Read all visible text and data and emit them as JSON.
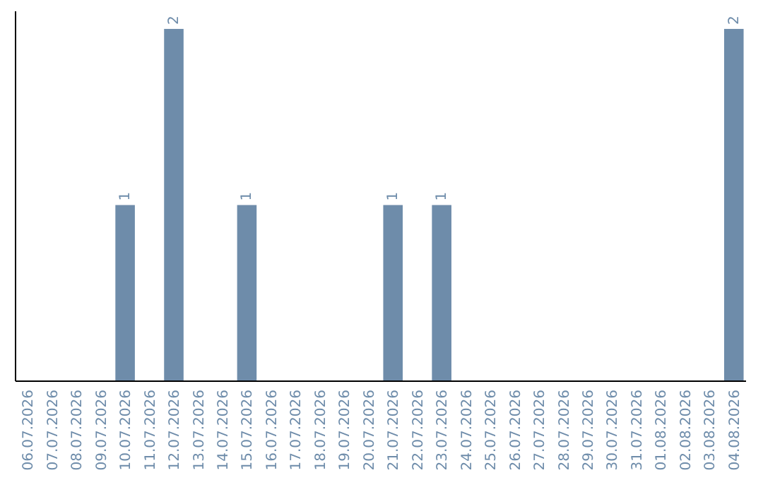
{
  "chart_data": {
    "type": "bar",
    "categories": [
      "06.07.2026",
      "07.07.2026",
      "08.07.2026",
      "09.07.2026",
      "10.07.2026",
      "11.07.2026",
      "12.07.2026",
      "13.07.2026",
      "14.07.2026",
      "15.07.2026",
      "16.07.2026",
      "17.07.2026",
      "18.07.2026",
      "19.07.2026",
      "20.07.2026",
      "21.07.2026",
      "22.07.2026",
      "23.07.2026",
      "24.07.2026",
      "25.07.2026",
      "26.07.2026",
      "27.07.2026",
      "28.07.2026",
      "29.07.2026",
      "30.07.2026",
      "31.07.2026",
      "01.08.2026",
      "02.08.2026",
      "03.08.2026",
      "04.08.2026"
    ],
    "values": [
      0,
      0,
      0,
      0,
      1,
      0,
      2,
      0,
      0,
      1,
      0,
      0,
      0,
      0,
      0,
      1,
      0,
      1,
      0,
      0,
      0,
      0,
      0,
      0,
      0,
      0,
      0,
      0,
      0,
      2
    ],
    "value_labels": [
      null,
      null,
      null,
      null,
      "1",
      null,
      "2",
      null,
      null,
      "1",
      null,
      null,
      null,
      null,
      null,
      "1",
      null,
      "1",
      null,
      null,
      null,
      null,
      null,
      null,
      null,
      null,
      null,
      null,
      null,
      "2"
    ],
    "color": "#6e8caa",
    "ylim": [
      0,
      2.1
    ],
    "tick_labels": "x"
  }
}
